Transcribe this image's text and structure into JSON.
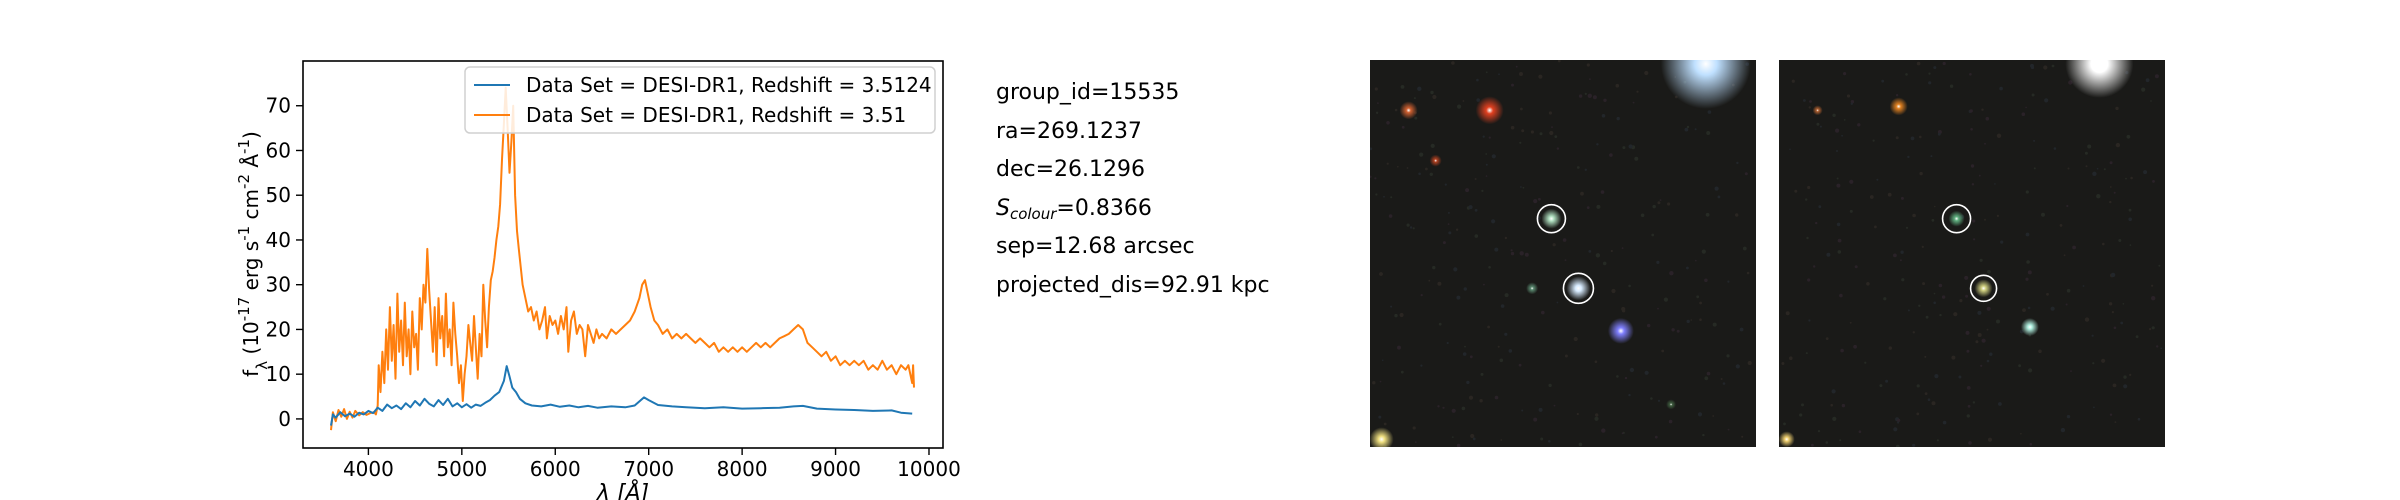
{
  "chart_data": {
    "type": "line",
    "xlabel": "λ [Å]",
    "ylabel": "f_λ (10^-17 erg s^-1 cm^-2 Å^-1)",
    "xlim": [
      3300,
      10150
    ],
    "ylim": [
      -6.5,
      80
    ],
    "xticks": [
      4000,
      5000,
      6000,
      7000,
      8000,
      9000,
      10000
    ],
    "yticks": [
      0,
      10,
      20,
      30,
      40,
      50,
      60,
      70
    ],
    "grid": false,
    "legend_position": "top-right",
    "series": [
      {
        "name": "Data Set = DESI-DR1, Redshift = 3.5124",
        "color": "#1f77b4",
        "points": [
          [
            3600,
            -1.5
          ],
          [
            3620,
            1.0
          ],
          [
            3650,
            0.3
          ],
          [
            3700,
            1.5
          ],
          [
            3750,
            0.6
          ],
          [
            3800,
            1.2
          ],
          [
            3850,
            0.5
          ],
          [
            3900,
            1.4
          ],
          [
            3950,
            1.0
          ],
          [
            4000,
            1.8
          ],
          [
            4050,
            1.3
          ],
          [
            4100,
            2.5
          ],
          [
            4150,
            1.8
          ],
          [
            4200,
            3.2
          ],
          [
            4250,
            2.4
          ],
          [
            4300,
            3.0
          ],
          [
            4350,
            2.2
          ],
          [
            4400,
            3.5
          ],
          [
            4450,
            2.6
          ],
          [
            4500,
            4.0
          ],
          [
            4550,
            3.0
          ],
          [
            4600,
            4.5
          ],
          [
            4650,
            3.4
          ],
          [
            4700,
            2.8
          ],
          [
            4750,
            4.2
          ],
          [
            4800,
            3.1
          ],
          [
            4850,
            4.5
          ],
          [
            4900,
            2.8
          ],
          [
            4950,
            3.5
          ],
          [
            5000,
            2.6
          ],
          [
            5050,
            3.3
          ],
          [
            5100,
            2.5
          ],
          [
            5150,
            3.2
          ],
          [
            5200,
            2.9
          ],
          [
            5250,
            3.6
          ],
          [
            5300,
            4.2
          ],
          [
            5350,
            5.2
          ],
          [
            5400,
            6.0
          ],
          [
            5450,
            8.5
          ],
          [
            5480,
            11.8
          ],
          [
            5510,
            9.5
          ],
          [
            5540,
            7.0
          ],
          [
            5580,
            6.0
          ],
          [
            5620,
            4.5
          ],
          [
            5680,
            3.5
          ],
          [
            5750,
            3.0
          ],
          [
            5850,
            2.8
          ],
          [
            5950,
            3.2
          ],
          [
            6050,
            2.7
          ],
          [
            6150,
            3.0
          ],
          [
            6250,
            2.6
          ],
          [
            6350,
            2.9
          ],
          [
            6450,
            2.5
          ],
          [
            6600,
            2.8
          ],
          [
            6750,
            2.6
          ],
          [
            6850,
            3.0
          ],
          [
            6950,
            4.8
          ],
          [
            7000,
            4.2
          ],
          [
            7100,
            3.1
          ],
          [
            7250,
            2.8
          ],
          [
            7400,
            2.6
          ],
          [
            7600,
            2.4
          ],
          [
            7800,
            2.6
          ],
          [
            8000,
            2.3
          ],
          [
            8200,
            2.4
          ],
          [
            8400,
            2.5
          ],
          [
            8550,
            2.8
          ],
          [
            8650,
            2.9
          ],
          [
            8800,
            2.3
          ],
          [
            9000,
            2.1
          ],
          [
            9200,
            2.0
          ],
          [
            9400,
            1.8
          ],
          [
            9600,
            1.9
          ],
          [
            9700,
            1.4
          ],
          [
            9820,
            1.2
          ]
        ]
      },
      {
        "name": "Data Set = DESI-DR1, Redshift = 3.51",
        "color": "#ff7f0e",
        "points": [
          [
            3600,
            -2.5
          ],
          [
            3620,
            1.5
          ],
          [
            3650,
            -0.5
          ],
          [
            3680,
            2.0
          ],
          [
            3710,
            0.5
          ],
          [
            3740,
            2.2
          ],
          [
            3770,
            0.0
          ],
          [
            3800,
            1.6
          ],
          [
            3830,
            0.3
          ],
          [
            3860,
            1.8
          ],
          [
            3900,
            0.8
          ],
          [
            3940,
            1.5
          ],
          [
            3980,
            0.9
          ],
          [
            4020,
            1.3
          ],
          [
            4060,
            1.5
          ],
          [
            4080,
            1.0
          ],
          [
            4100,
            3.0
          ],
          [
            4110,
            12.0
          ],
          [
            4130,
            6.0
          ],
          [
            4150,
            15.0
          ],
          [
            4170,
            8.0
          ],
          [
            4190,
            20.0
          ],
          [
            4210,
            11.0
          ],
          [
            4230,
            25.0
          ],
          [
            4250,
            13.0
          ],
          [
            4270,
            21.0
          ],
          [
            4290,
            9.0
          ],
          [
            4310,
            28.0
          ],
          [
            4330,
            15.0
          ],
          [
            4350,
            22.0
          ],
          [
            4370,
            12.0
          ],
          [
            4390,
            26.0
          ],
          [
            4410,
            14.0
          ],
          [
            4430,
            20.0
          ],
          [
            4450,
            10.0
          ],
          [
            4470,
            24.0
          ],
          [
            4490,
            16.0
          ],
          [
            4510,
            19.0
          ],
          [
            4530,
            11.0
          ],
          [
            4550,
            27.0
          ],
          [
            4570,
            20.0
          ],
          [
            4590,
            30.0
          ],
          [
            4610,
            26.0
          ],
          [
            4630,
            38.0
          ],
          [
            4650,
            29.0
          ],
          [
            4670,
            22.0
          ],
          [
            4690,
            15.0
          ],
          [
            4710,
            25.0
          ],
          [
            4730,
            12.0
          ],
          [
            4750,
            27.0
          ],
          [
            4770,
            18.0
          ],
          [
            4790,
            23.0
          ],
          [
            4810,
            14.0
          ],
          [
            4830,
            28.0
          ],
          [
            4850,
            16.0
          ],
          [
            4870,
            20.0
          ],
          [
            4890,
            12.0
          ],
          [
            4910,
            26.0
          ],
          [
            4930,
            19.0
          ],
          [
            4950,
            14.0
          ],
          [
            4970,
            8.0
          ],
          [
            4990,
            12.0
          ],
          [
            5010,
            4.0
          ],
          [
            5030,
            10.0
          ],
          [
            5050,
            14.0
          ],
          [
            5070,
            21.0
          ],
          [
            5090,
            17.0
          ],
          [
            5110,
            13.0
          ],
          [
            5130,
            23.0
          ],
          [
            5150,
            16.0
          ],
          [
            5170,
            9.0
          ],
          [
            5190,
            19.0
          ],
          [
            5210,
            14.0
          ],
          [
            5230,
            30.0
          ],
          [
            5250,
            22.0
          ],
          [
            5270,
            16.0
          ],
          [
            5290,
            25.0
          ],
          [
            5310,
            31.0
          ],
          [
            5330,
            33.0
          ],
          [
            5350,
            36.0
          ],
          [
            5370,
            40.0
          ],
          [
            5390,
            43.0
          ],
          [
            5410,
            48.0
          ],
          [
            5430,
            58.0
          ],
          [
            5450,
            66.0
          ],
          [
            5470,
            74.0
          ],
          [
            5490,
            65.0
          ],
          [
            5510,
            55.0
          ],
          [
            5530,
            62.0
          ],
          [
            5550,
            70.0
          ],
          [
            5570,
            50.0
          ],
          [
            5590,
            42.0
          ],
          [
            5610,
            38.0
          ],
          [
            5630,
            34.0
          ],
          [
            5650,
            30.0
          ],
          [
            5680,
            27.0
          ],
          [
            5710,
            24.0
          ],
          [
            5740,
            25.0
          ],
          [
            5770,
            22.0
          ],
          [
            5800,
            24.0
          ],
          [
            5830,
            20.0
          ],
          [
            5860,
            22.0
          ],
          [
            5890,
            25.0
          ],
          [
            5910,
            18.0
          ],
          [
            5940,
            23.0
          ],
          [
            5970,
            21.0
          ],
          [
            6000,
            22.0
          ],
          [
            6030,
            19.0
          ],
          [
            6060,
            23.0
          ],
          [
            6090,
            20.0
          ],
          [
            6120,
            25.0
          ],
          [
            6140,
            15.0
          ],
          [
            6170,
            22.0
          ],
          [
            6200,
            24.0
          ],
          [
            6230,
            19.0
          ],
          [
            6260,
            21.0
          ],
          [
            6290,
            20.0
          ],
          [
            6320,
            14.0
          ],
          [
            6350,
            21.0
          ],
          [
            6380,
            19.0
          ],
          [
            6410,
            17.0
          ],
          [
            6440,
            20.0
          ],
          [
            6470,
            18.0
          ],
          [
            6500,
            19.0
          ],
          [
            6550,
            18.0
          ],
          [
            6600,
            20.0
          ],
          [
            6650,
            19.0
          ],
          [
            6700,
            20.0
          ],
          [
            6750,
            21.0
          ],
          [
            6800,
            22.0
          ],
          [
            6850,
            24.0
          ],
          [
            6900,
            27.0
          ],
          [
            6930,
            30.0
          ],
          [
            6960,
            31.0
          ],
          [
            6990,
            28.0
          ],
          [
            7020,
            25.0
          ],
          [
            7060,
            22.0
          ],
          [
            7100,
            21.0
          ],
          [
            7150,
            19.0
          ],
          [
            7200,
            20.0
          ],
          [
            7250,
            18.0
          ],
          [
            7300,
            19.0
          ],
          [
            7350,
            18.0
          ],
          [
            7400,
            19.0
          ],
          [
            7450,
            18.0
          ],
          [
            7500,
            17.0
          ],
          [
            7550,
            18.0
          ],
          [
            7600,
            17.0
          ],
          [
            7650,
            16.0
          ],
          [
            7700,
            17.0
          ],
          [
            7750,
            15.0
          ],
          [
            7800,
            16.0
          ],
          [
            7850,
            15.0
          ],
          [
            7900,
            16.0
          ],
          [
            7950,
            15.0
          ],
          [
            8000,
            16.0
          ],
          [
            8050,
            15.0
          ],
          [
            8100,
            16.0
          ],
          [
            8150,
            17.0
          ],
          [
            8200,
            16.0
          ],
          [
            8250,
            17.0
          ],
          [
            8300,
            16.0
          ],
          [
            8350,
            17.0
          ],
          [
            8400,
            18.0
          ],
          [
            8450,
            18.5
          ],
          [
            8500,
            19.0
          ],
          [
            8550,
            20.0
          ],
          [
            8600,
            21.0
          ],
          [
            8650,
            20.0
          ],
          [
            8700,
            17.0
          ],
          [
            8750,
            16.0
          ],
          [
            8800,
            15.0
          ],
          [
            8850,
            14.0
          ],
          [
            8900,
            15.0
          ],
          [
            8950,
            13.0
          ],
          [
            9000,
            14.0
          ],
          [
            9050,
            12.0
          ],
          [
            9100,
            13.0
          ],
          [
            9150,
            12.0
          ],
          [
            9200,
            13.0
          ],
          [
            9250,
            12.0
          ],
          [
            9300,
            13.0
          ],
          [
            9350,
            11.0
          ],
          [
            9400,
            12.0
          ],
          [
            9450,
            11.0
          ],
          [
            9500,
            13.0
          ],
          [
            9550,
            11.0
          ],
          [
            9600,
            12.0
          ],
          [
            9650,
            10.0
          ],
          [
            9700,
            12.0
          ],
          [
            9750,
            11.0
          ],
          [
            9780,
            12.0
          ],
          [
            9800,
            10.0
          ],
          [
            9820,
            8.0
          ],
          [
            9830,
            12.0
          ],
          [
            9840,
            7.0
          ]
        ]
      }
    ]
  },
  "info": {
    "group_id": "group_id=15535",
    "ra": "ra=269.1237",
    "dec": "dec=26.1296",
    "s_colour_label": "S",
    "s_colour_sub": "colour",
    "s_colour_value": "=0.8366",
    "sep": "sep=12.68 arcsec",
    "projected_dis": "projected_dis=92.91 kpc"
  },
  "images": {
    "background_color": "#1a1a18",
    "circle_color": "#ffffff",
    "left_stars": [
      {
        "fx": 0.1,
        "fy": 0.13,
        "r": 9,
        "color": "#d06030"
      },
      {
        "fx": 0.31,
        "fy": 0.13,
        "r": 14,
        "color": "#e04020"
      },
      {
        "fx": 0.87,
        "fy": 0.01,
        "r": 45,
        "color": "#bfe0ff"
      },
      {
        "fx": 0.17,
        "fy": 0.26,
        "r": 6,
        "color": "#b04020"
      },
      {
        "fx": 0.47,
        "fy": 0.41,
        "r": 10,
        "color": "#b0e0c0"
      },
      {
        "fx": 0.54,
        "fy": 0.59,
        "r": 12,
        "color": "#d8ecff"
      },
      {
        "fx": 0.42,
        "fy": 0.59,
        "r": 6,
        "color": "#5a8a70"
      },
      {
        "fx": 0.65,
        "fy": 0.7,
        "r": 13,
        "color": "#8080ff"
      },
      {
        "fx": 0.03,
        "fy": 0.98,
        "r": 12,
        "color": "#f0e080"
      },
      {
        "fx": 0.78,
        "fy": 0.89,
        "r": 5,
        "color": "#405f40"
      }
    ],
    "left_circles": [
      {
        "fx": 0.47,
        "fy": 0.41,
        "r": 14
      },
      {
        "fx": 0.54,
        "fy": 0.59,
        "r": 15
      }
    ],
    "right_stars": [
      {
        "fx": 0.31,
        "fy": 0.12,
        "r": 9,
        "color": "#e08020"
      },
      {
        "fx": 0.1,
        "fy": 0.13,
        "r": 5,
        "color": "#b06030"
      },
      {
        "fx": 0.83,
        "fy": 0.01,
        "r": 34,
        "color": "#ffffff"
      },
      {
        "fx": 0.46,
        "fy": 0.41,
        "r": 8,
        "color": "#60b080"
      },
      {
        "fx": 0.53,
        "fy": 0.59,
        "r": 9,
        "color": "#d0d080"
      },
      {
        "fx": 0.65,
        "fy": 0.69,
        "r": 9,
        "color": "#b0f0e0"
      },
      {
        "fx": 0.02,
        "fy": 0.98,
        "r": 8,
        "color": "#f0d070"
      }
    ],
    "right_circles": [
      {
        "fx": 0.46,
        "fy": 0.41,
        "r": 14
      },
      {
        "fx": 0.53,
        "fy": 0.59,
        "r": 13
      }
    ]
  }
}
